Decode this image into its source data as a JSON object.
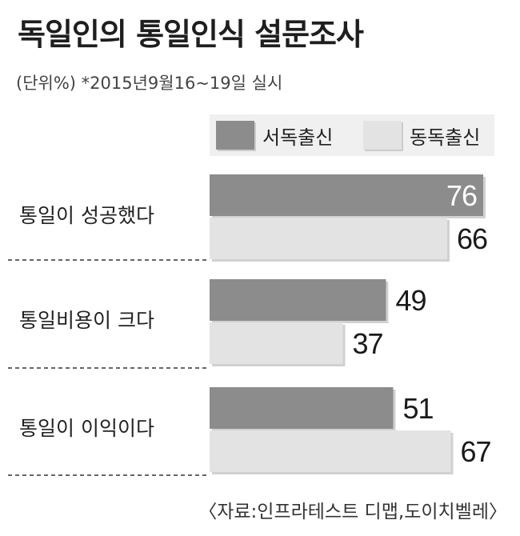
{
  "title": "독일인의 통일인식 설문조사",
  "subtitle": "(단위%)  *2015년9월16~19일 실시",
  "source": "〈자료:인프라테스트 디맵,도이치벨레〉",
  "colors": {
    "west": "#8c8c8c",
    "east": "#e3e3e3",
    "label_on_dark": "#ffffff",
    "label_default": "#1a1a1a"
  },
  "chart_data": {
    "type": "bar",
    "orientation": "horizontal",
    "categories": [
      "통일이 성공했다",
      "통일비용이 크다",
      "통일이 이익이다"
    ],
    "series": [
      {
        "name": "서독출신",
        "values": [
          76,
          49,
          51
        ]
      },
      {
        "name": "동독출신",
        "values": [
          66,
          37,
          67
        ]
      }
    ],
    "xlim": [
      0,
      76
    ],
    "legend_position": "top-right",
    "grid": false
  }
}
